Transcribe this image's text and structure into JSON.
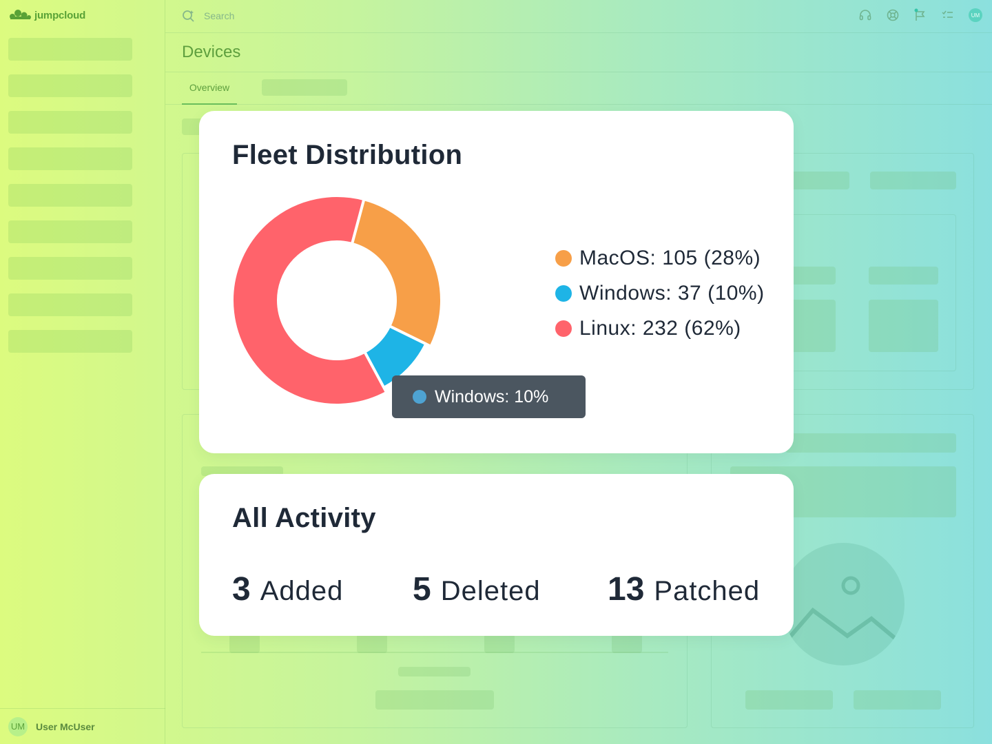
{
  "app": {
    "name": "jumpcloud"
  },
  "search": {
    "placeholder": "Search"
  },
  "page": {
    "title": "Devices"
  },
  "tabs": [
    {
      "label": "Overview",
      "active": true
    }
  ],
  "user": {
    "initials": "UM",
    "name": "User McUser"
  },
  "top_icons": [
    "headset-icon",
    "help-lifebuoy-icon",
    "flag-icon",
    "tasks-icon",
    "user-avatar"
  ],
  "fleet": {
    "title": "Fleet Distribution",
    "legend": [
      {
        "label": "MacOS: 105 (28%)",
        "color": "#f79f48"
      },
      {
        "label": "Windows: 37 (10%)",
        "color": "#1eb4e6"
      },
      {
        "label": "Linux: 232 (62%)",
        "color": "#ff636b"
      }
    ],
    "tooltip": "Windows: 10%"
  },
  "chart_data": {
    "type": "pie",
    "categories": [
      "MacOS",
      "Windows",
      "Linux"
    ],
    "values": [
      105,
      37,
      232
    ],
    "percentages": [
      28,
      10,
      62
    ],
    "colors": [
      "#f79f48",
      "#1eb4e6",
      "#ff636b"
    ],
    "donut": true,
    "highlighted": "Windows"
  },
  "activity": {
    "title": "All Activity",
    "stats": [
      {
        "value": "3",
        "label": "Added"
      },
      {
        "value": "5",
        "label": "Deleted"
      },
      {
        "value": "13",
        "label": "Patched"
      }
    ]
  },
  "colors": {
    "brand": "#59a236",
    "card_text": "#1f2937",
    "tooltip_bg": "#4b5660"
  }
}
